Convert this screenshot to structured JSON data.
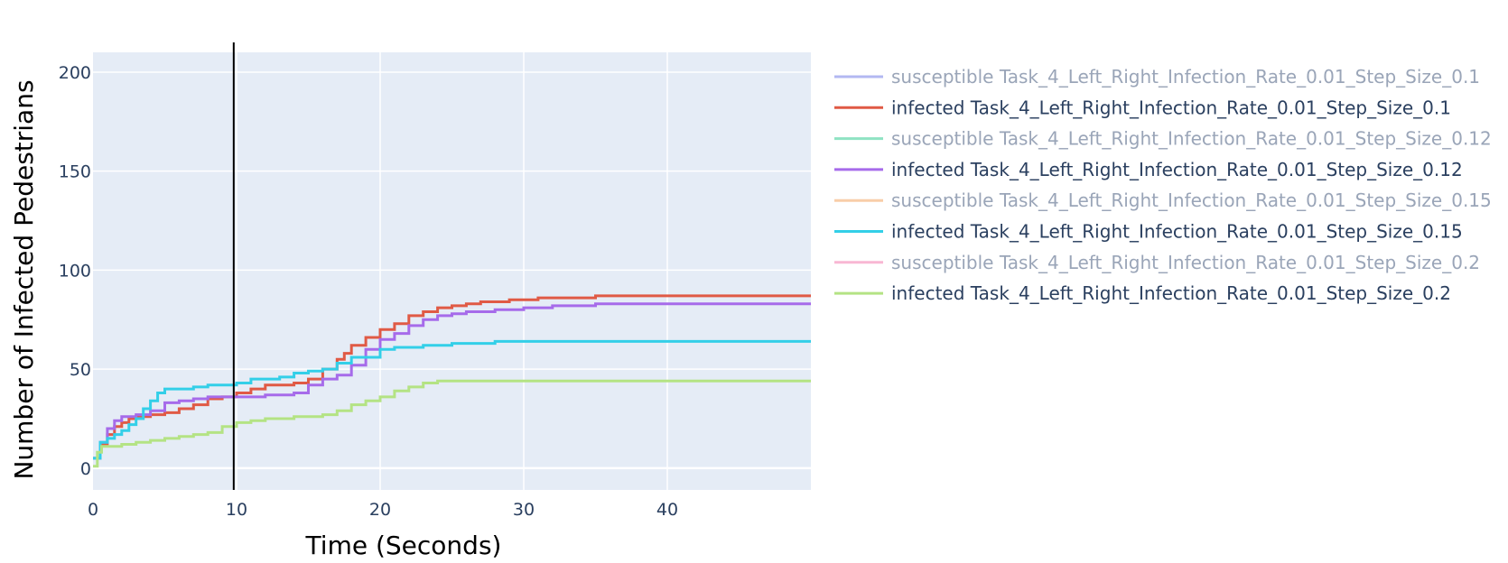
{
  "chart_data": {
    "type": "line",
    "xlabel": "Time (Seconds)",
    "ylabel": "Number of Infected Pedestrians",
    "xlim": [
      0,
      50
    ],
    "ylim": [
      -11,
      210
    ],
    "x_ticks": [
      0,
      10,
      20,
      30,
      40
    ],
    "y_ticks": [
      0,
      50,
      100,
      150,
      200
    ],
    "grid": true,
    "legend_position": "right",
    "vertical_marker_x": 9.8,
    "colors": {
      "plot_background": "#e5ecf6",
      "grid": "#ffffff",
      "marker_line": "#000000",
      "axis_text": "#2a3f5f"
    },
    "series": [
      {
        "name": "susceptible Task_4_Left_Right_Infection_Rate_0.01_Step_Size_0.1",
        "color": "#b3b8f2",
        "hidden": true,
        "points": []
      },
      {
        "name": "infected Task_4_Left_Right_Infection_Rate_0.01_Step_Size_0.1",
        "color": "#e05a45",
        "hidden": false,
        "points": [
          [
            0,
            5
          ],
          [
            0.5,
            12
          ],
          [
            1,
            17
          ],
          [
            1.5,
            21
          ],
          [
            2,
            23
          ],
          [
            2.5,
            25
          ],
          [
            3,
            26
          ],
          [
            4,
            27
          ],
          [
            5,
            28
          ],
          [
            6,
            30
          ],
          [
            7,
            32
          ],
          [
            8,
            35
          ],
          [
            9,
            36
          ],
          [
            10,
            38
          ],
          [
            11,
            40
          ],
          [
            12,
            42
          ],
          [
            13,
            42
          ],
          [
            14,
            43
          ],
          [
            15,
            45
          ],
          [
            16,
            50
          ],
          [
            17,
            55
          ],
          [
            17.5,
            58
          ],
          [
            18,
            62
          ],
          [
            19,
            66
          ],
          [
            20,
            70
          ],
          [
            21,
            73
          ],
          [
            22,
            77
          ],
          [
            23,
            79
          ],
          [
            24,
            81
          ],
          [
            25,
            82
          ],
          [
            26,
            83
          ],
          [
            27,
            84
          ],
          [
            29,
            85
          ],
          [
            31,
            86
          ],
          [
            35,
            87
          ],
          [
            50,
            87
          ]
        ]
      },
      {
        "name": "susceptible Task_4_Left_Right_Infection_Rate_0.01_Step_Size_0.12",
        "color": "#8fe3c3",
        "hidden": true,
        "points": []
      },
      {
        "name": "infected Task_4_Left_Right_Infection_Rate_0.01_Step_Size_0.12",
        "color": "#a66bea",
        "hidden": false,
        "points": [
          [
            0,
            5
          ],
          [
            0.5,
            13
          ],
          [
            1,
            20
          ],
          [
            1.5,
            24
          ],
          [
            2,
            26
          ],
          [
            3,
            27
          ],
          [
            4,
            29
          ],
          [
            5,
            33
          ],
          [
            6,
            34
          ],
          [
            7,
            35
          ],
          [
            8,
            36
          ],
          [
            10,
            36
          ],
          [
            12,
            37
          ],
          [
            14,
            38
          ],
          [
            15,
            42
          ],
          [
            16,
            45
          ],
          [
            17,
            47
          ],
          [
            18,
            52
          ],
          [
            19,
            60
          ],
          [
            20,
            65
          ],
          [
            21,
            68
          ],
          [
            22,
            72
          ],
          [
            23,
            75
          ],
          [
            24,
            77
          ],
          [
            25,
            78
          ],
          [
            26,
            79
          ],
          [
            28,
            80
          ],
          [
            30,
            81
          ],
          [
            32,
            82
          ],
          [
            35,
            83
          ],
          [
            50,
            83
          ]
        ]
      },
      {
        "name": "susceptible Task_4_Left_Right_Infection_Rate_0.01_Step_Size_0.15",
        "color": "#f8cda8",
        "hidden": true,
        "points": []
      },
      {
        "name": "infected Task_4_Left_Right_Infection_Rate_0.01_Step_Size_0.15",
        "color": "#33cfe8",
        "hidden": false,
        "points": [
          [
            0,
            5
          ],
          [
            0.5,
            13
          ],
          [
            1,
            15
          ],
          [
            1.5,
            17
          ],
          [
            2,
            19
          ],
          [
            2.5,
            22
          ],
          [
            3,
            25
          ],
          [
            3.5,
            30
          ],
          [
            4,
            34
          ],
          [
            4.5,
            38
          ],
          [
            5,
            40
          ],
          [
            6,
            40
          ],
          [
            7,
            41
          ],
          [
            8,
            42
          ],
          [
            9,
            42
          ],
          [
            10,
            43
          ],
          [
            11,
            45
          ],
          [
            12,
            45
          ],
          [
            13,
            46
          ],
          [
            14,
            48
          ],
          [
            15,
            49
          ],
          [
            16,
            50
          ],
          [
            17,
            53
          ],
          [
            18,
            56
          ],
          [
            19,
            56
          ],
          [
            20,
            60
          ],
          [
            21,
            61
          ],
          [
            23,
            62
          ],
          [
            25,
            63
          ],
          [
            28,
            64
          ],
          [
            50,
            64
          ]
        ]
      },
      {
        "name": "susceptible Task_4_Left_Right_Infection_Rate_0.01_Step_Size_0.2",
        "color": "#f8b7d3",
        "hidden": true,
        "points": []
      },
      {
        "name": "infected Task_4_Left_Right_Infection_Rate_0.01_Step_Size_0.2",
        "color": "#b4e384",
        "hidden": false,
        "points": [
          [
            0,
            1
          ],
          [
            0.3,
            8
          ],
          [
            0.6,
            11
          ],
          [
            1,
            11
          ],
          [
            2,
            12
          ],
          [
            3,
            13
          ],
          [
            4,
            14
          ],
          [
            5,
            15
          ],
          [
            6,
            16
          ],
          [
            7,
            17
          ],
          [
            8,
            18
          ],
          [
            9,
            21
          ],
          [
            10,
            23
          ],
          [
            11,
            24
          ],
          [
            12,
            25
          ],
          [
            14,
            26
          ],
          [
            16,
            27
          ],
          [
            17,
            29
          ],
          [
            18,
            32
          ],
          [
            19,
            34
          ],
          [
            20,
            36
          ],
          [
            21,
            39
          ],
          [
            22,
            41
          ],
          [
            23,
            43
          ],
          [
            24,
            44
          ],
          [
            50,
            44
          ]
        ]
      }
    ]
  }
}
